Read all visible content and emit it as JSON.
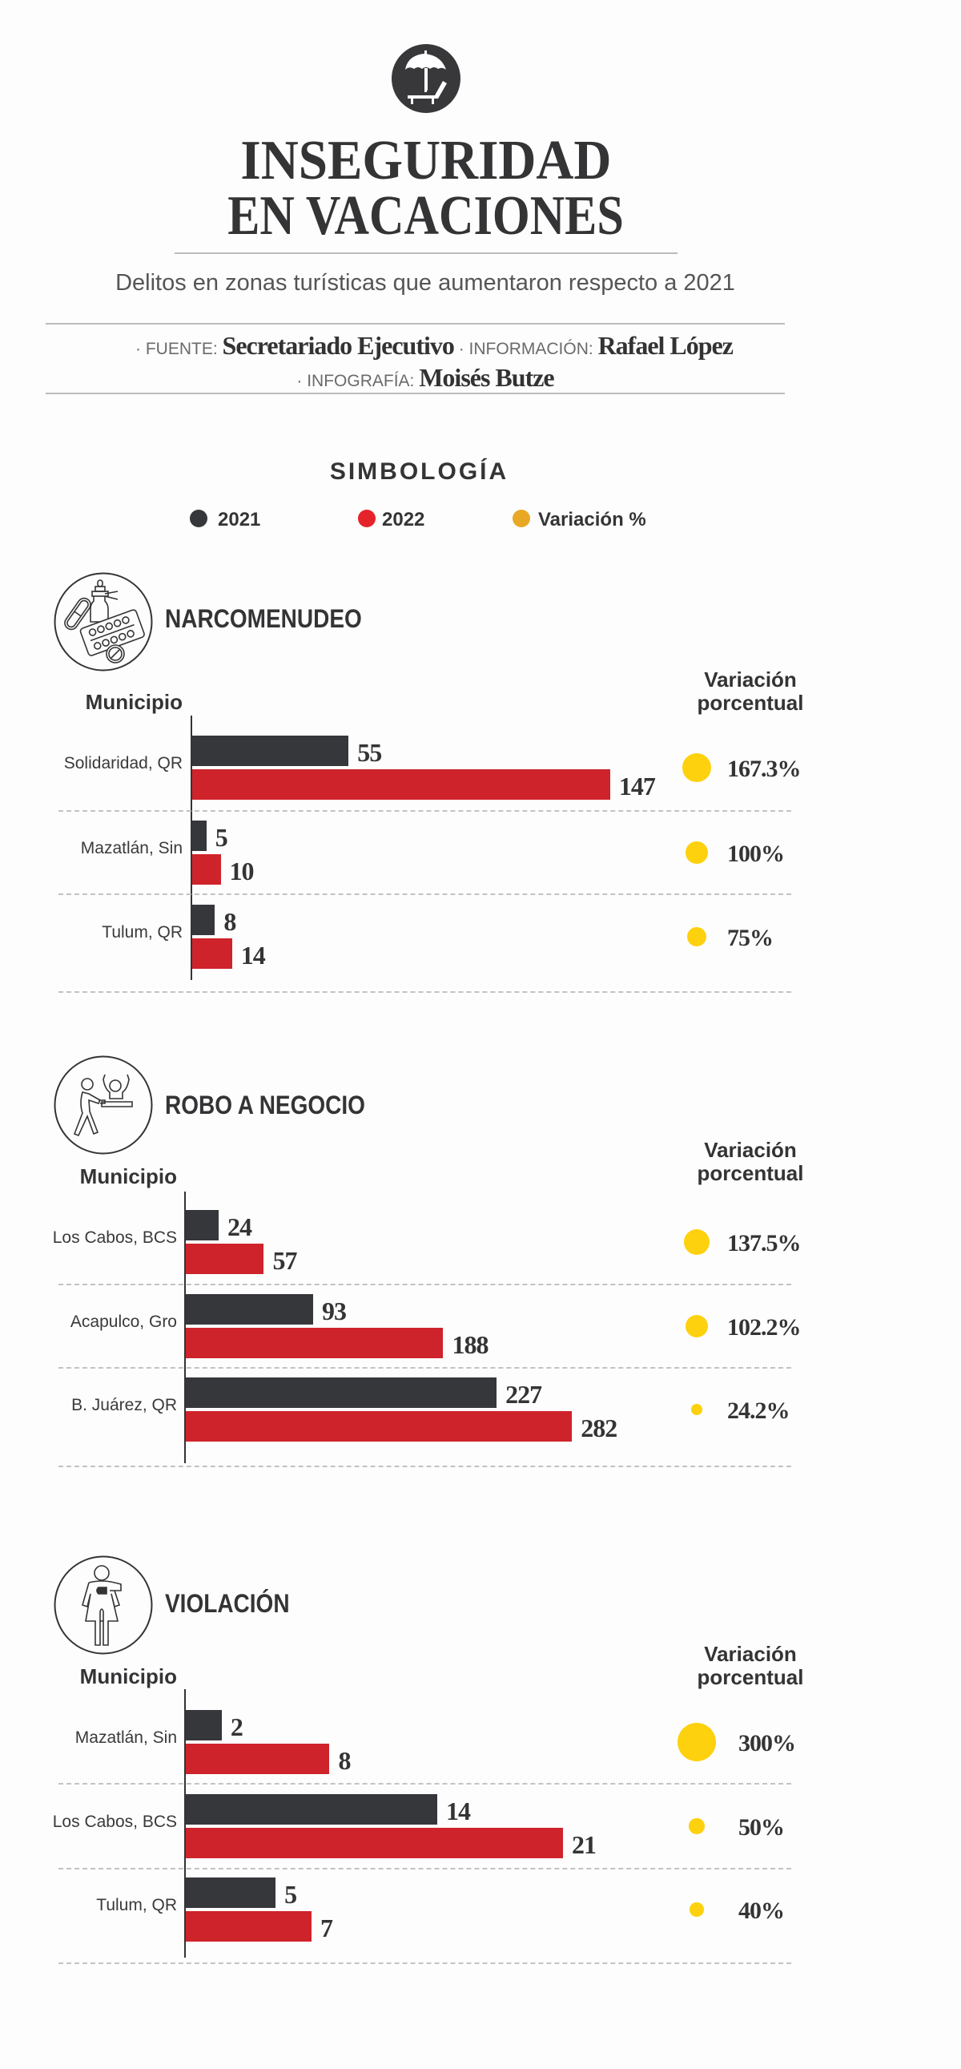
{
  "header": {
    "icon": "beach-umbrella-lounger-icon",
    "title_line1": "INSEGURIDAD",
    "title_line2": "EN VACACIONES",
    "subtitle": "Delitos en zonas turísticas que aumentaron respecto a 2021"
  },
  "credits": {
    "fuente_label": "· FUENTE:",
    "fuente": "Secretariado Ejecutivo",
    "informacion_label": "· INFORMACIÓN:",
    "informacion": "Rafael López",
    "infografia_label": "· INFOGRAFÍA:",
    "infografia": "Moisés Butze"
  },
  "legend": {
    "title": "SIMBOLOGÍA",
    "items": [
      {
        "label": "2021",
        "color": "#36373b"
      },
      {
        "label": "2022",
        "color": "#e5232a"
      },
      {
        "label": "Variación %",
        "color": "#e8a825"
      }
    ]
  },
  "colors": {
    "bar_2021": "#36373b",
    "bar_2022": "#cf232b",
    "variation_dot": "#fdd10d"
  },
  "chart_data": [
    {
      "type": "bar",
      "orientation": "horizontal",
      "title": "NARCOMENUDEO",
      "icon": "drugs-pills-icon",
      "ylabel": "Municipio",
      "variation_header": [
        "Variación",
        "porcentual"
      ],
      "categories": [
        "Solidaridad, QR",
        "Mazatlán, Sin",
        "Tulum, QR"
      ],
      "series": [
        {
          "name": "2021",
          "values": [
            55,
            5,
            8
          ]
        },
        {
          "name": "2022",
          "values": [
            147,
            10,
            14
          ]
        }
      ],
      "variation": [
        167.3,
        100,
        75
      ],
      "variation_labels": [
        "167.3%",
        "100%",
        "75%"
      ]
    },
    {
      "type": "bar",
      "orientation": "horizontal",
      "title": "ROBO A NEGOCIO",
      "icon": "armed-robbery-icon",
      "ylabel": "Municipio",
      "variation_header": [
        "Variación",
        "porcentual"
      ],
      "categories": [
        "Los Cabos, BCS",
        "Acapulco, Gro",
        "B. Juárez, QR"
      ],
      "series": [
        {
          "name": "2021",
          "values": [
            24,
            93,
            227
          ]
        },
        {
          "name": "2022",
          "values": [
            57,
            188,
            282
          ]
        }
      ],
      "variation": [
        137.5,
        102.2,
        24.2
      ],
      "variation_labels": [
        "137.5%",
        "102.2%",
        "24.2%"
      ]
    },
    {
      "type": "bar",
      "orientation": "horizontal",
      "title": "VIOLACIÓN",
      "icon": "woman-assault-icon",
      "ylabel": "Municipio",
      "variation_header": [
        "Variación",
        "porcentual"
      ],
      "categories": [
        "Mazatlán, Sin",
        "Los Cabos, BCS",
        "Tulum, QR"
      ],
      "series": [
        {
          "name": "2021",
          "values": [
            2,
            14,
            5
          ]
        },
        {
          "name": "2022",
          "values": [
            8,
            21,
            7
          ]
        }
      ],
      "variation": [
        300,
        50,
        40
      ],
      "variation_labels": [
        "300%",
        "50%",
        "40%"
      ]
    }
  ]
}
